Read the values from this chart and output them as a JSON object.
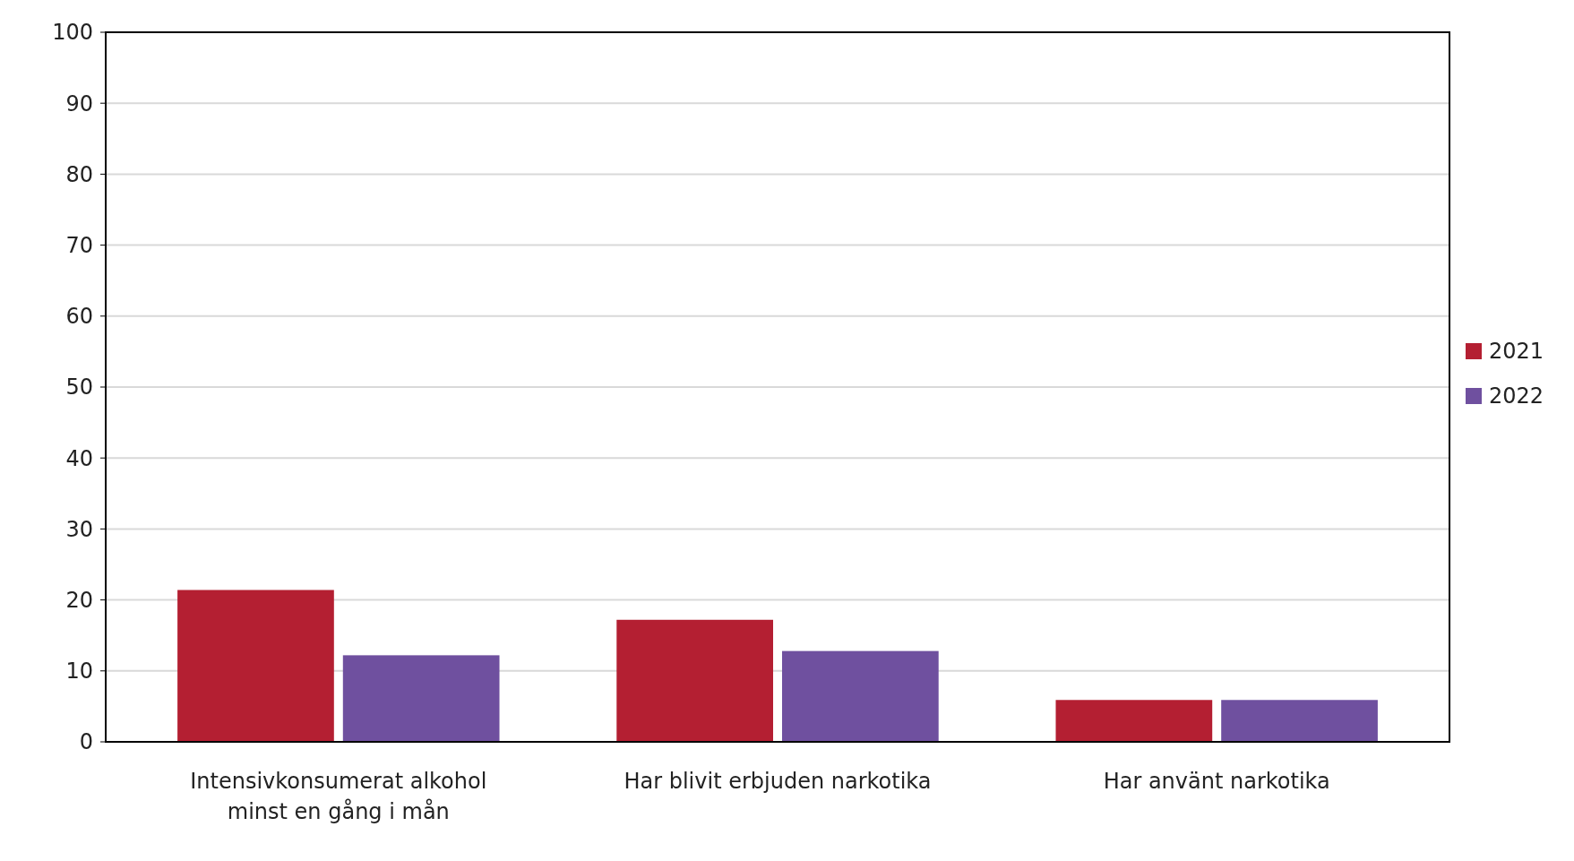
{
  "chart_data": {
    "type": "bar",
    "categories": [
      "Intensivkonsumerat alkohol minst en gång i mån",
      "Har blivit erbjuden narkotika",
      "Har använt narkotika"
    ],
    "series": [
      {
        "name": "2021",
        "color": "#b41f32",
        "values": [
          21.4,
          17.2,
          5.9
        ]
      },
      {
        "name": "2022",
        "color": "#6f509f",
        "values": [
          12.2,
          12.8,
          5.9
        ]
      }
    ],
    "ylim": [
      0,
      100
    ],
    "yticks": [
      0,
      10,
      20,
      30,
      40,
      50,
      60,
      70,
      80,
      90,
      100
    ],
    "grid": "y",
    "legend": "right"
  }
}
